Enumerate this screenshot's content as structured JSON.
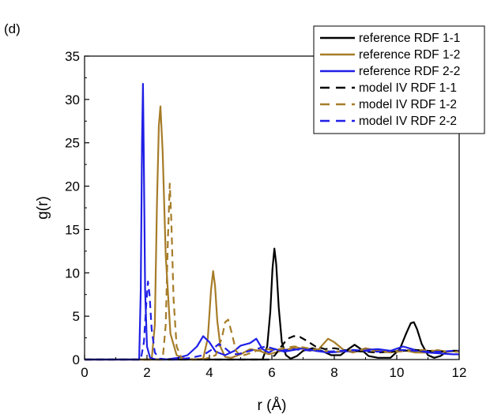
{
  "panel_label": "(d)",
  "chart_data": {
    "type": "line",
    "title": "",
    "xlabel": "r (Å)",
    "ylabel": "g(r)",
    "xlim": [
      0,
      12
    ],
    "ylim": [
      0,
      35
    ],
    "xticks": [
      0,
      2,
      4,
      6,
      8,
      10,
      12
    ],
    "yticks": [
      0,
      5,
      10,
      15,
      20,
      25,
      30,
      35
    ],
    "grid": false,
    "legend_position": "top-right",
    "series": [
      {
        "name": "reference RDF 1-1",
        "color": "#000000",
        "style": "solid",
        "x": [
          0,
          5.7,
          5.85,
          5.95,
          6.02,
          6.08,
          6.14,
          6.22,
          6.32,
          6.45,
          6.6,
          6.8,
          7.0,
          7.3,
          7.6,
          7.9,
          8.2,
          8.45,
          8.65,
          8.85,
          9.1,
          9.4,
          9.8,
          10.1,
          10.3,
          10.45,
          10.55,
          10.65,
          10.8,
          11.0,
          11.2,
          11.4,
          11.6,
          11.8,
          12.0
        ],
        "y": [
          0,
          0,
          1.5,
          5.5,
          10.5,
          12.8,
          11.0,
          6.0,
          2.0,
          0.5,
          0.1,
          0.4,
          1.0,
          1.3,
          1.0,
          0.5,
          0.5,
          1.2,
          1.7,
          1.2,
          0.4,
          0.2,
          0.2,
          1.2,
          3.0,
          4.2,
          4.3,
          3.5,
          1.8,
          0.5,
          0.2,
          0.4,
          0.9,
          1.0,
          1.0
        ]
      },
      {
        "name": "reference RDF 1-2",
        "color": "#a67c28",
        "style": "solid",
        "x": [
          0,
          2.15,
          2.25,
          2.32,
          2.38,
          2.43,
          2.5,
          2.6,
          2.75,
          2.95,
          3.2,
          3.5,
          3.8,
          3.95,
          4.05,
          4.12,
          4.18,
          4.25,
          4.35,
          4.5,
          4.7,
          5.0,
          5.3,
          5.6,
          5.9,
          6.3,
          6.8,
          7.2,
          7.5,
          7.8,
          8.0,
          8.3,
          8.6,
          9.0,
          9.4,
          9.8,
          10.2,
          10.6,
          11.0,
          11.3,
          11.6,
          12.0
        ],
        "y": [
          0,
          0,
          4,
          18,
          27,
          29.2,
          24,
          12,
          3,
          0.5,
          0.1,
          0,
          0.1,
          2.5,
          8.0,
          10.2,
          8.5,
          4.5,
          1.5,
          0.3,
          0.2,
          0.6,
          1.2,
          1.0,
          0.6,
          1.0,
          1.4,
          1.0,
          1.2,
          2.4,
          2.0,
          1.1,
          0.8,
          1.3,
          1.0,
          0.8,
          1.1,
          0.8,
          0.8,
          1.1,
          0.9,
          1.0
        ]
      },
      {
        "name": "reference RDF 2-2",
        "color": "#1f1fe6",
        "style": "solid",
        "x": [
          0,
          1.75,
          1.8,
          1.84,
          1.87,
          1.9,
          1.94,
          2.0,
          2.1,
          2.3,
          2.6,
          3.0,
          3.3,
          3.6,
          3.8,
          4.0,
          4.2,
          4.5,
          4.8,
          5.0,
          5.3,
          5.5,
          5.7,
          5.9,
          6.1,
          6.4,
          6.7,
          7.0,
          7.4,
          7.8,
          8.2,
          8.6,
          9.0,
          9.4,
          9.8,
          10.2,
          10.6,
          11.0,
          11.4,
          11.8,
          12.0
        ],
        "y": [
          0,
          0,
          8,
          25,
          31.8,
          22,
          8,
          1.5,
          0.2,
          0,
          0,
          0.2,
          0.5,
          1.5,
          2.7,
          2.0,
          0.9,
          0.5,
          1.0,
          1.6,
          1.9,
          2.4,
          1.2,
          0.8,
          1.2,
          0.9,
          1.1,
          1.3,
          1.0,
          0.8,
          0.9,
          1.0,
          1.1,
          1.2,
          1.0,
          1.5,
          1.1,
          0.8,
          0.7,
          0.6,
          0.6
        ]
      },
      {
        "name": "model IV RDF 1-1",
        "color": "#000000",
        "style": "dashed",
        "x": [
          0,
          5.9,
          6.1,
          6.3,
          6.5,
          6.7,
          6.9,
          7.1,
          7.4,
          7.7,
          8.0,
          8.3,
          8.6,
          9.0,
          9.4,
          9.8,
          10.2,
          10.6,
          11.0,
          11.4,
          11.8,
          12.0
        ],
        "y": [
          0,
          0,
          0.5,
          1.5,
          2.4,
          2.7,
          2.6,
          2.2,
          1.5,
          1.2,
          1.3,
          1.1,
          1.0,
          0.9,
          0.8,
          0.9,
          1.0,
          1.1,
          1.0,
          0.9,
          1.0,
          1.0
        ]
      },
      {
        "name": "model IV RDF 1-2",
        "color": "#a67c28",
        "style": "dashed",
        "x": [
          0,
          2.5,
          2.6,
          2.67,
          2.73,
          2.78,
          2.85,
          2.95,
          3.1,
          3.4,
          3.8,
          4.2,
          4.4,
          4.5,
          4.6,
          4.72,
          4.85,
          5.0,
          5.2,
          5.5,
          5.8,
          6.1,
          6.4,
          6.7,
          7.0,
          7.3,
          7.6,
          8.0,
          8.4,
          8.8,
          9.2,
          9.6,
          10.0,
          10.4,
          10.8,
          11.2,
          11.6,
          12.0
        ],
        "y": [
          0,
          0,
          4,
          14,
          20.3,
          16,
          7,
          1.5,
          0.2,
          0,
          0,
          0.5,
          2.5,
          4.3,
          4.6,
          3.0,
          1.0,
          0.4,
          0.6,
          1.0,
          1.2,
          1.1,
          1.3,
          1.5,
          1.4,
          1.2,
          1.0,
          0.9,
          1.0,
          1.1,
          1.0,
          0.9,
          0.9,
          1.0,
          1.1,
          1.0,
          0.9,
          0.9
        ]
      },
      {
        "name": "model IV RDF 2-2",
        "color": "#1f1fe6",
        "style": "dashed",
        "x": [
          0,
          1.8,
          1.9,
          1.97,
          2.03,
          2.08,
          2.15,
          2.25,
          2.4,
          2.7,
          3.0,
          3.4,
          3.8,
          4.1,
          4.3,
          4.5,
          4.7,
          4.9,
          5.2,
          5.5,
          5.8,
          6.0,
          6.3,
          6.6,
          7.0,
          7.4,
          7.8,
          8.2,
          8.6,
          9.0,
          9.4,
          9.8,
          10.2,
          10.6,
          11.0,
          11.4,
          11.8,
          12.0
        ],
        "y": [
          0,
          0,
          2,
          6,
          9.0,
          7.5,
          3.5,
          0.8,
          0.1,
          0,
          0,
          0.2,
          0.5,
          1.2,
          1.8,
          1.3,
          0.7,
          0.6,
          0.9,
          1.2,
          1.5,
          1.3,
          1.0,
          1.2,
          1.1,
          1.0,
          0.9,
          1.0,
          1.1,
          1.0,
          0.9,
          1.0,
          1.1,
          1.0,
          0.9,
          0.9,
          1.0,
          1.0
        ]
      }
    ]
  }
}
